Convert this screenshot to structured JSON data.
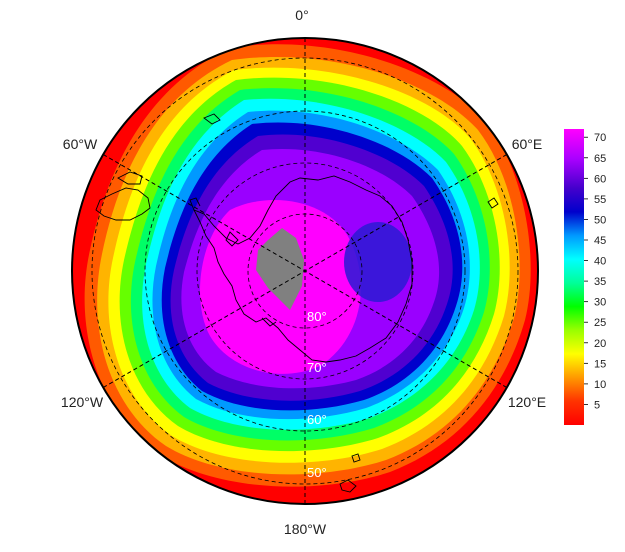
{
  "map": {
    "projection": "south-polar-stereographic",
    "longitude_labels": [
      {
        "lon": 0,
        "text": "0°"
      },
      {
        "lon": 60,
        "text": "60°E"
      },
      {
        "lon": 120,
        "text": "120°E"
      },
      {
        "lon": 180,
        "text": "180°W"
      },
      {
        "lon": -120,
        "text": "120°W"
      },
      {
        "lon": -60,
        "text": "60°W"
      }
    ],
    "latitude_labels": [
      {
        "lat": -80,
        "text": "80°"
      },
      {
        "lat": -70,
        "text": "70°"
      },
      {
        "lat": -60,
        "text": "60°"
      },
      {
        "lat": -50,
        "text": "50°"
      }
    ],
    "missing_data_color": "#808080",
    "coastline_color": "#000000",
    "graticule_style": "dashed"
  },
  "colorbar": {
    "min": 0,
    "max": 72,
    "ticks": [
      {
        "value": 5,
        "text": "5"
      },
      {
        "value": 10,
        "text": "10"
      },
      {
        "value": 15,
        "text": "15"
      },
      {
        "value": 20,
        "text": "20"
      },
      {
        "value": 25,
        "text": "25"
      },
      {
        "value": 30,
        "text": "30"
      },
      {
        "value": 35,
        "text": "35"
      },
      {
        "value": 40,
        "text": "40"
      },
      {
        "value": 45,
        "text": "45"
      },
      {
        "value": 50,
        "text": "50"
      },
      {
        "value": 55,
        "text": "55"
      },
      {
        "value": 60,
        "text": "60"
      },
      {
        "value": 65,
        "text": "65"
      },
      {
        "value": 70,
        "text": "70"
      }
    ],
    "colormap": [
      "#ff0000",
      "#ff6600",
      "#ffcc00",
      "#ffff00",
      "#99ff00",
      "#00ff00",
      "#00ff99",
      "#00ffff",
      "#0099ff",
      "#0000cc",
      "#5500cc",
      "#aa00ff",
      "#ff00ff"
    ]
  }
}
